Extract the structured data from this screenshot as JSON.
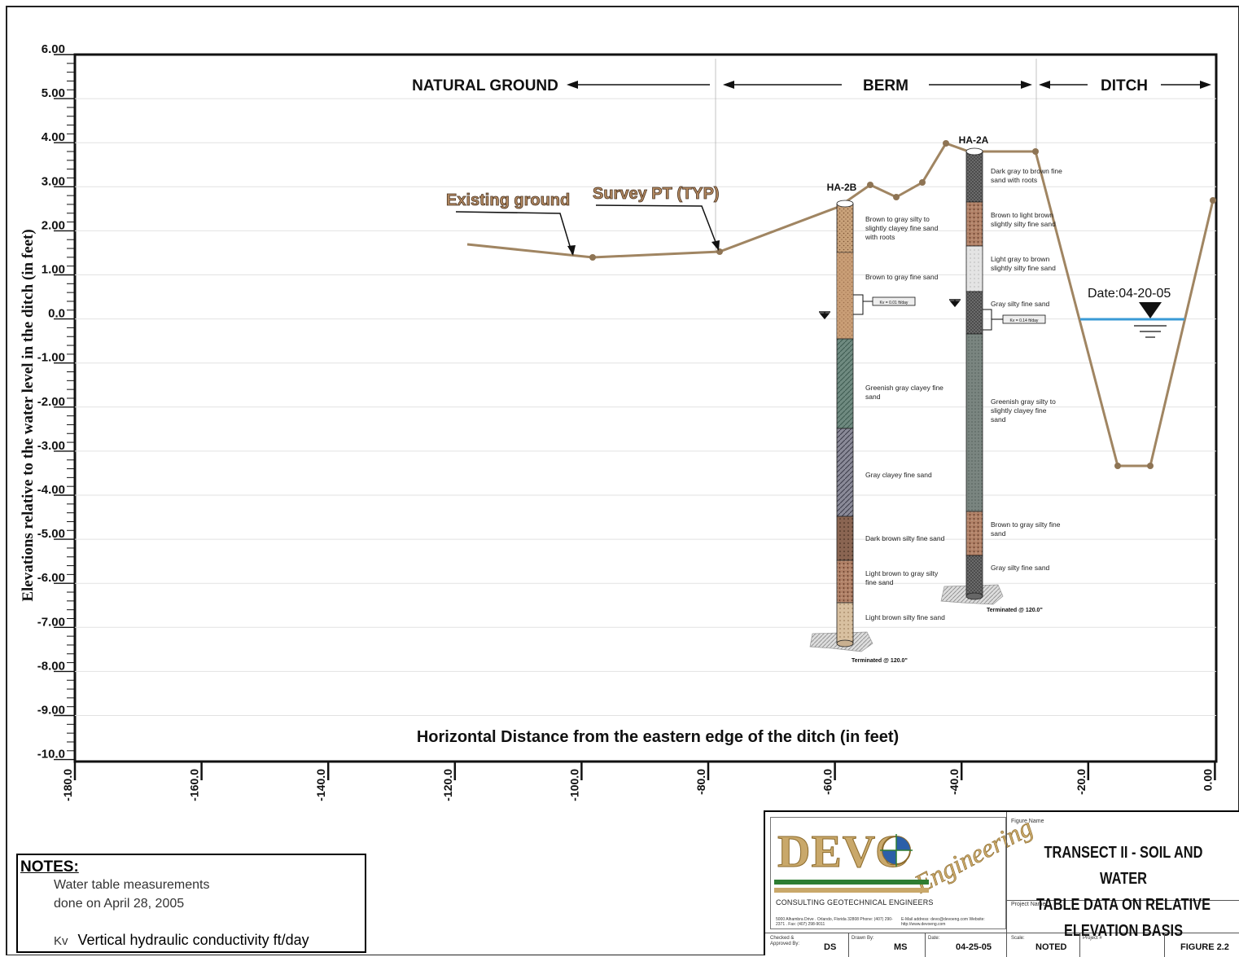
{
  "yaxis": {
    "label": "Elevations relative to the water level in the ditch (in feet)",
    "ticks": [
      "6.00",
      "5.00",
      "4.00",
      "3.00",
      "2.00",
      "1.00",
      "0.0",
      "-1.00",
      "-2.00",
      "-3.00",
      "-4.00",
      "-5.00",
      "-6.00",
      "-7.00",
      "-8.00",
      "-9.00",
      "-10.0"
    ]
  },
  "xaxis": {
    "label": "Horizontal Distance from the eastern edge of the ditch (in feet)",
    "ticks": [
      "-180.0",
      "-160.0",
      "-140.0",
      "-120.0",
      "-100.0",
      "-80.0",
      "-60.0",
      "-40.0",
      "-20.0",
      "0.00"
    ]
  },
  "zones": {
    "natural": "NATURAL GROUND",
    "berm": "BERM",
    "ditch": "DITCH"
  },
  "callouts": {
    "existing": "Existing ground",
    "survey": "Survey PT (TYP)",
    "date": "Date:04-20-05"
  },
  "borings": {
    "ha2b": {
      "name": "HA-2B",
      "kv_tag": "Kv = 0.01 ft/day",
      "terminated": "Terminated @ 120.0\"",
      "layers": [
        {
          "label": "Brown to gray silty to slightly clayey fine sand with roots"
        },
        {
          "label": "Brown to gray fine sand"
        },
        {
          "label": "Greenish gray clayey fine sand"
        },
        {
          "label": "Gray clayey fine sand"
        },
        {
          "label": "Dark brown silty fine sand"
        },
        {
          "label": "Light brown to gray silty fine sand"
        },
        {
          "label": "Light brown silty fine sand"
        }
      ]
    },
    "ha2a": {
      "name": "HA-2A",
      "kv_tag": "Kv = 0.14 ft/day",
      "terminated": "Terminated @ 120.0\"",
      "layers": [
        {
          "label": "Dark gray to brown fine sand with roots"
        },
        {
          "label": "Brown to light brown slightly silty fine sand"
        },
        {
          "label": "Light gray to brown slightly silty fine sand"
        },
        {
          "label": "Gray silty fine sand"
        },
        {
          "label": "Greenish gray silty to slightly clayey fine sand"
        },
        {
          "label": "Brown to gray silty fine sand"
        },
        {
          "label": "Gray silty fine sand"
        }
      ]
    }
  },
  "notes": {
    "heading": "NOTES:",
    "line1": "Water table measurements",
    "line2": "done on April 28, 2005",
    "kv_sym": "Kv",
    "kv_text": "Vertical hydraulic conductivity ft/day"
  },
  "titleblock": {
    "logo": "DEVO",
    "logo_script": "Engineering",
    "consulting": "CONSULTING GEOTECHNICAL ENGINEERS",
    "address": "5000 Alhambra Drive . Orlando, Florida 32808 Phone: (407) 290-2371 . Fax: (407) 298-9011",
    "email": "E-Mail address: devo@devoeng.com Website: http://www.devoeng.com",
    "figure_name_label": "Figure Name",
    "figure_title_1": "TRANSECT II - SOIL AND WATER",
    "figure_title_2": "TABLE DATA ON RELATIVE ELEVATION BASIS",
    "project_name_label": "Project Name",
    "checked_label": "Checked & Approved By:",
    "checked_val": "DS",
    "drawn_label": "Drawn By:",
    "drawn_val": "MS",
    "date_label": "Date:",
    "date_val": "04-25-05",
    "scale_label": "Scale:",
    "scale_val": "NOTED",
    "project_no_label": "Project #",
    "figure_no": "FIGURE 2.2"
  }
}
